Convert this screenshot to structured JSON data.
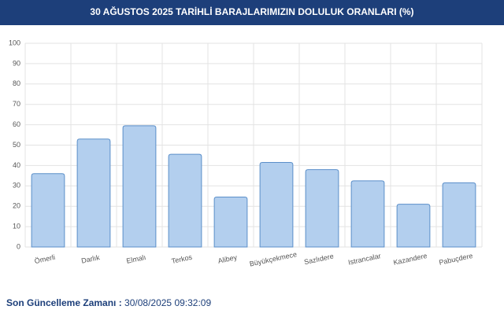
{
  "chart_data": {
    "type": "bar",
    "title": "30 AĞUSTOS 2025 TARİHLİ BARAJLARIMIZIN DOLULUK ORANLARI (%)",
    "categories": [
      "Ömerli",
      "Darlık",
      "Elmalı",
      "Terkos",
      "Alibey",
      "Büyükçekmece",
      "Sazlıdere",
      "Istrancalar",
      "Kazandere",
      "Pabuçdere"
    ],
    "values": [
      36,
      53,
      59.5,
      45.5,
      24.5,
      41.5,
      38,
      32.5,
      21,
      31.5
    ],
    "color": "#b3cfee",
    "ylim": [
      0,
      100
    ],
    "yticks": [
      0,
      10,
      20,
      30,
      40,
      50,
      60,
      70,
      80,
      90,
      100
    ],
    "grid": true
  },
  "footer": {
    "label": "Son Güncelleme Zamanı :",
    "value": "30/08/2025 09:32:09"
  }
}
